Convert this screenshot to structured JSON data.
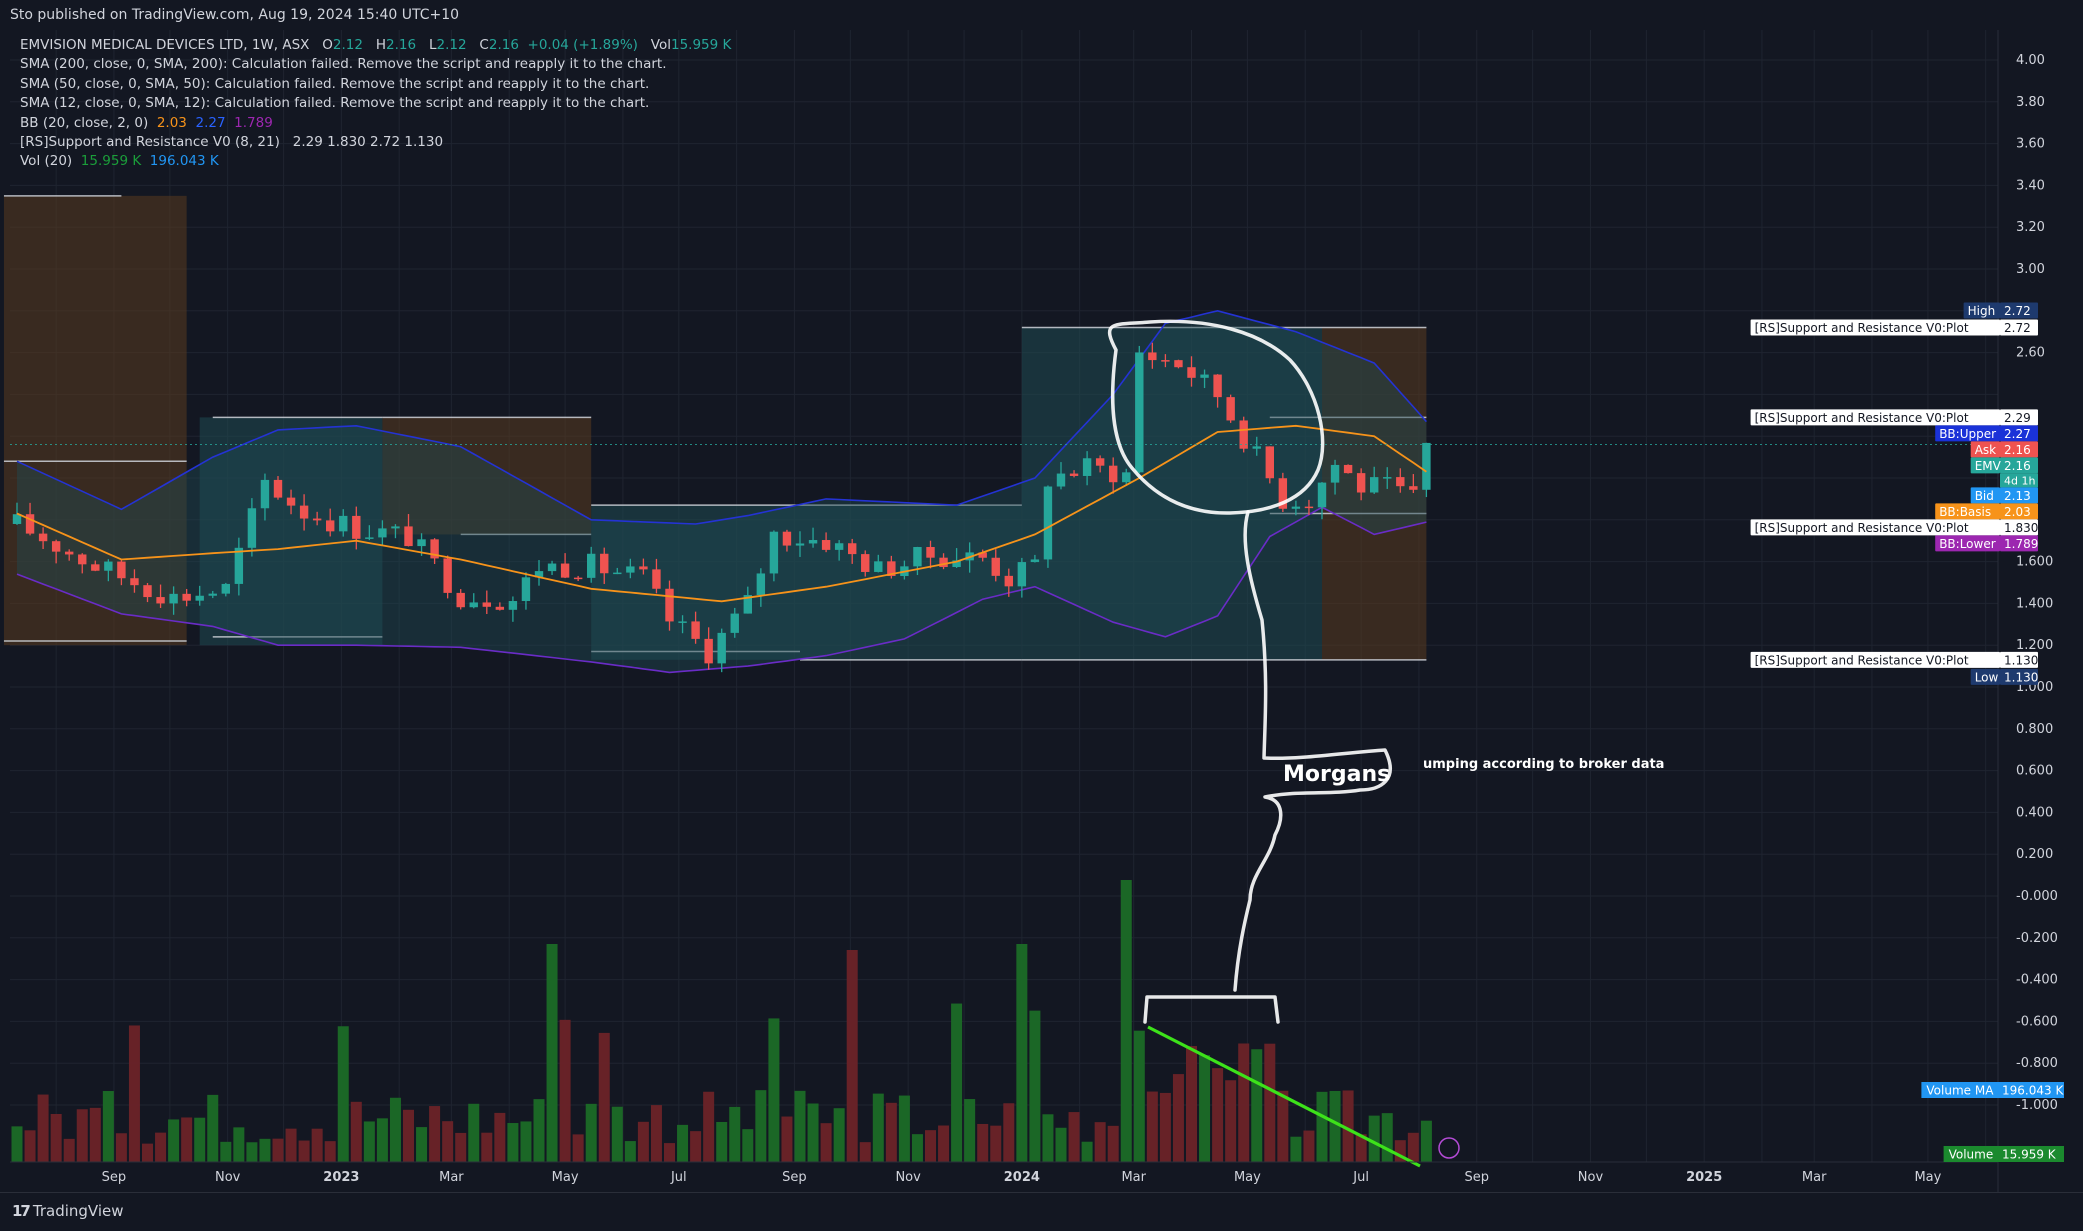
{
  "header": {
    "published": "Sto published on TradingView.com, Aug 19, 2024 15:40 UTC+10"
  },
  "legend": {
    "symbol": "EMVISION MEDICAL DEVICES LTD, 1W, ASX",
    "o_label": "O",
    "o": "2.12",
    "h_label": "H",
    "h": "2.16",
    "l_label": "L",
    "l": "2.12",
    "c_label": "C",
    "c": "2.16",
    "change": "+0.04 (+1.89%)",
    "vol_label": "Vol",
    "vol": "15.959 K",
    "sma200": "SMA (200, close, 0, SMA, 200): Calculation failed. Remove the script and reapply it to the chart.",
    "sma50": "SMA (50, close, 0, SMA, 50): Calculation failed. Remove the script and reapply it to the chart.",
    "sma12": "SMA (12, close, 0, SMA, 12): Calculation failed. Remove the script and reapply it to the chart.",
    "bb_label": "BB (20, close, 2, 0)",
    "bb_basis": "2.03",
    "bb_upper": "2.27",
    "bb_lower": "1.789",
    "rs_label": "[RS]Support and Resistance V0 (8, 21)",
    "rs_values": "2.29  1.830  2.72  1.130",
    "vol20_label": "Vol (20)",
    "vol20_a": "15.959 K",
    "vol20_b": "196.043 K"
  },
  "brand": {
    "logo": "17",
    "name": "TradingView"
  },
  "chart_data": {
    "type": "candlestick",
    "interval": "1W",
    "y_axis": {
      "ticks": [
        4.0,
        3.8,
        3.6,
        3.4,
        3.2,
        3.0,
        2.8,
        2.6,
        2.4,
        2.2,
        2.0,
        1.8,
        1.6,
        1.4,
        1.2,
        1.0,
        0.8,
        0.6,
        0.4,
        0.2,
        0.0,
        -0.2,
        -0.4,
        -0.6,
        -0.8,
        -1.0
      ],
      "labels": [
        "4.00",
        "3.80",
        "3.60",
        "3.40",
        "3.20",
        "3.00",
        "",
        "2.60",
        "",
        "",
        "",
        "",
        "1.600",
        "1.400",
        "1.200",
        "1.000",
        "0.800",
        "0.600",
        "0.400",
        "0.200",
        "-0.000",
        "-0.200",
        "-0.400",
        "-0.600",
        "-0.800",
        "-1.000"
      ],
      "ylim": [
        -1.25,
        4.1
      ]
    },
    "x_axis": {
      "labels": [
        "Sep",
        "Nov",
        "2023",
        "Mar",
        "May",
        "Jul",
        "Sep",
        "Nov",
        "2024",
        "Mar",
        "May",
        "Jul",
        "Sep",
        "Nov",
        "2025",
        "Mar",
        "May"
      ],
      "bold": [
        "2023",
        "2024",
        "2025"
      ],
      "first_week": "2022-07-11",
      "weeks_with_data": 109
    },
    "price_series": {
      "name": "EMV",
      "anchors_week_close": [
        [
          0,
          1.78
        ],
        [
          6,
          1.58
        ],
        [
          12,
          1.43
        ],
        [
          16,
          1.47
        ],
        [
          19,
          1.98
        ],
        [
          22,
          1.84
        ],
        [
          26,
          1.76
        ],
        [
          30,
          1.72
        ],
        [
          34,
          1.44
        ],
        [
          38,
          1.42
        ],
        [
          40,
          1.58
        ],
        [
          44,
          1.58
        ],
        [
          48,
          1.52
        ],
        [
          50,
          1.32
        ],
        [
          53,
          1.17
        ],
        [
          56,
          1.4
        ],
        [
          58,
          1.73
        ],
        [
          62,
          1.7
        ],
        [
          66,
          1.56
        ],
        [
          70,
          1.63
        ],
        [
          74,
          1.62
        ],
        [
          76,
          1.52
        ],
        [
          78,
          1.58
        ],
        [
          79,
          2.0
        ],
        [
          82,
          2.05
        ],
        [
          85,
          2.02
        ],
        [
          86,
          2.6
        ],
        [
          89,
          2.55
        ],
        [
          92,
          2.4
        ],
        [
          95,
          2.1
        ],
        [
          97,
          1.9
        ],
        [
          99,
          1.9
        ],
        [
          101,
          2.07
        ],
        [
          103,
          1.96
        ],
        [
          105,
          1.95
        ],
        [
          107,
          1.9
        ],
        [
          108,
          2.16
        ]
      ]
    },
    "bollinger": {
      "basis_anchors": [
        [
          0,
          1.83
        ],
        [
          8,
          1.61
        ],
        [
          15,
          1.64
        ],
        [
          20,
          1.66
        ],
        [
          26,
          1.7
        ],
        [
          34,
          1.61
        ],
        [
          44,
          1.47
        ],
        [
          54,
          1.41
        ],
        [
          62,
          1.48
        ],
        [
          72,
          1.6
        ],
        [
          78,
          1.73
        ],
        [
          86,
          2.0
        ],
        [
          92,
          2.22
        ],
        [
          98,
          2.25
        ],
        [
          104,
          2.2
        ],
        [
          108,
          2.03
        ]
      ],
      "upper_anchors": [
        [
          0,
          2.08
        ],
        [
          8,
          1.85
        ],
        [
          15,
          2.1
        ],
        [
          20,
          2.23
        ],
        [
          26,
          2.25
        ],
        [
          34,
          2.15
        ],
        [
          44,
          1.8
        ],
        [
          52,
          1.78
        ],
        [
          56,
          1.82
        ],
        [
          62,
          1.9
        ],
        [
          72,
          1.87
        ],
        [
          78,
          2.0
        ],
        [
          84,
          2.4
        ],
        [
          88,
          2.74
        ],
        [
          92,
          2.8
        ],
        [
          98,
          2.7
        ],
        [
          104,
          2.55
        ],
        [
          108,
          2.27
        ]
      ],
      "lower_anchors": [
        [
          0,
          1.54
        ],
        [
          8,
          1.35
        ],
        [
          15,
          1.29
        ],
        [
          20,
          1.2
        ],
        [
          26,
          1.2
        ],
        [
          34,
          1.19
        ],
        [
          44,
          1.12
        ],
        [
          50,
          1.07
        ],
        [
          56,
          1.1
        ],
        [
          62,
          1.15
        ],
        [
          68,
          1.23
        ],
        [
          74,
          1.42
        ],
        [
          78,
          1.48
        ],
        [
          84,
          1.31
        ],
        [
          88,
          1.24
        ],
        [
          92,
          1.34
        ],
        [
          96,
          1.72
        ],
        [
          100,
          1.86
        ],
        [
          104,
          1.73
        ],
        [
          108,
          1.789
        ]
      ]
    },
    "support_resistance": {
      "plot_levels": [
        2.72,
        2.29,
        1.83,
        1.13
      ]
    },
    "volume": {
      "volume_ma": "196.043 K",
      "volume": "15.959 K"
    },
    "price_labels": [
      {
        "label": "High",
        "value": "2.72",
        "color": "#1e3a6e"
      },
      {
        "label": "[RS]Support and Resistance V0:Plot",
        "value": "2.72",
        "color": "#ffffff"
      },
      {
        "label": "[RS]Support and Resistance V0:Plot",
        "value": "2.29",
        "color": "#ffffff"
      },
      {
        "label": "BB:Upper",
        "value": "2.27",
        "color": "#1a32d8"
      },
      {
        "label": "Ask",
        "value": "2.16",
        "color": "#ef5350"
      },
      {
        "label": "EMV",
        "value": "2.16",
        "sub": "4d 1h",
        "color": "#26a69a"
      },
      {
        "label": "Bid",
        "value": "2.13",
        "color": "#2196f3"
      },
      {
        "label": "BB:Basis",
        "value": "2.03",
        "color": "#f7931a"
      },
      {
        "label": "[RS]Support and Resistance V0:Plot",
        "value": "1.830",
        "color": "#ffffff"
      },
      {
        "label": "BB:Lower",
        "value": "1.789",
        "color": "#9c27b0"
      },
      {
        "label": "[RS]Support and Resistance V0:Plot",
        "value": "1.130",
        "color": "#ffffff"
      },
      {
        "label": "Low",
        "value": "1.130",
        "color": "#1e3a6e"
      }
    ],
    "volume_labels": [
      {
        "label": "Volume MA",
        "value": "196.043 K",
        "color": "#2196f3"
      },
      {
        "label": "Volume",
        "value": "15.959 K",
        "color": "#1b8a2e"
      }
    ],
    "annotations": {
      "broker": "Morgans",
      "note": "umping according to broker data"
    },
    "colors": {
      "up": "#26a69a",
      "down": "#ef5350",
      "vol_up": "#1b6b27",
      "vol_down": "#6b2328",
      "bb_basis": "#f7931a",
      "bb_band": "#2433d4",
      "bb_fill": "#1f4a52",
      "trend": "#3de21a"
    }
  }
}
